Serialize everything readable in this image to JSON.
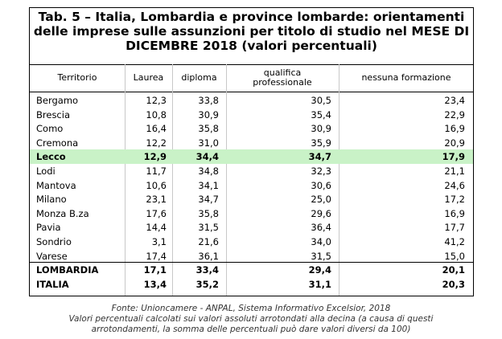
{
  "title": {
    "line1": "Tab. 5 – Italia, Lombardia e province lombarde: orientamenti",
    "line2": "delle imprese sulle assunzioni per titolo di studio nel MESE DI",
    "line3": "DICEMBRE 2018 (valori percentuali)"
  },
  "headers": {
    "territorio": "Territorio",
    "laurea": "Laurea",
    "diploma": "diploma",
    "qualifica_1": "qualifica",
    "qualifica_2": "professionale",
    "nessuna": "nessuna formazione"
  },
  "rows": [
    {
      "name": "Bergamo",
      "laurea": "12,3",
      "diploma": "33,8",
      "qualifica": "30,5",
      "nessuna": "23,4"
    },
    {
      "name": "Brescia",
      "laurea": "10,8",
      "diploma": "30,9",
      "qualifica": "35,4",
      "nessuna": "22,9"
    },
    {
      "name": "Como",
      "laurea": "16,4",
      "diploma": "35,8",
      "qualifica": "30,9",
      "nessuna": "16,9"
    },
    {
      "name": "Cremona",
      "laurea": "12,2",
      "diploma": "31,0",
      "qualifica": "35,9",
      "nessuna": "20,9"
    },
    {
      "name": "Lecco",
      "laurea": "12,9",
      "diploma": "34,4",
      "qualifica": "34,7",
      "nessuna": "17,9"
    },
    {
      "name": "Lodi",
      "laurea": "11,7",
      "diploma": "34,8",
      "qualifica": "32,3",
      "nessuna": "21,1"
    },
    {
      "name": "Mantova",
      "laurea": "10,6",
      "diploma": "34,1",
      "qualifica": "30,6",
      "nessuna": "24,6"
    },
    {
      "name": "Milano",
      "laurea": "23,1",
      "diploma": "34,7",
      "qualifica": "25,0",
      "nessuna": "17,2"
    },
    {
      "name": "Monza B.za",
      "laurea": "17,6",
      "diploma": "35,8",
      "qualifica": "29,6",
      "nessuna": "16,9"
    },
    {
      "name": "Pavia",
      "laurea": "14,4",
      "diploma": "31,5",
      "qualifica": "36,4",
      "nessuna": "17,7"
    },
    {
      "name": "Sondrio",
      "laurea": "3,1",
      "diploma": "21,6",
      "qualifica": "34,0",
      "nessuna": "41,2"
    },
    {
      "name": "Varese",
      "laurea": "17,4",
      "diploma": "36,1",
      "qualifica": "31,5",
      "nessuna": "15,0"
    }
  ],
  "totals": [
    {
      "name": "LOMBARDIA",
      "laurea": "17,1",
      "diploma": "33,4",
      "qualifica": "29,4",
      "nessuna": "20,1"
    },
    {
      "name": "ITALIA",
      "laurea": "13,4",
      "diploma": "35,2",
      "qualifica": "31,1",
      "nessuna": "20,3"
    }
  ],
  "highlight_color": "#c9f2c7",
  "footer": {
    "source": "Fonte: Unioncamere - ANPAL, Sistema Informativo Excelsior, 2018",
    "note1": "Valori percentuali calcolati sui valori assoluti arrotondati alla decina (a causa di questi",
    "note2": "arrotondamenti,  la somma delle percentuali può dare valori diversi da 100)"
  }
}
